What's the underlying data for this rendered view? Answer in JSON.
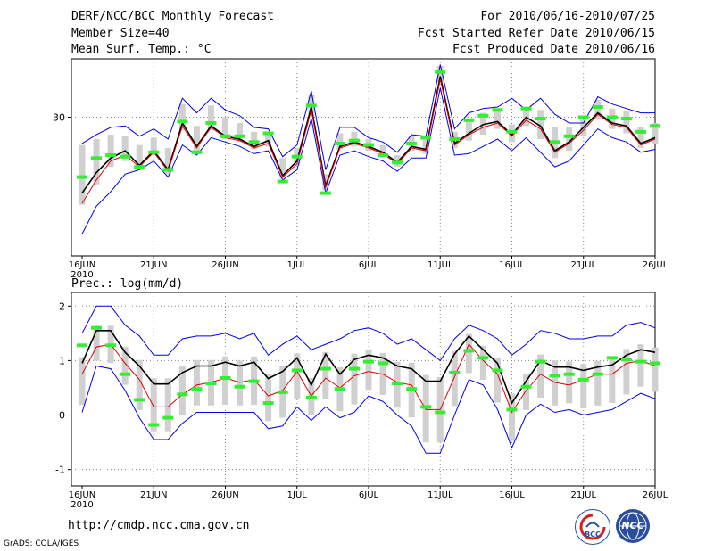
{
  "header": {
    "title": "DERF/NCC/BCC Monthly Forecast",
    "member_size": "Member Size=40",
    "variable": "Mean Surf. Temp.: °C",
    "period": "For 2010/06/16-2010/07/25",
    "refer_date": "Fcst Started Refer Date 2010/06/15",
    "produced_date": "Fcst Produced Date 2010/06/16"
  },
  "footer": {
    "url": "http://cmdp.ncc.cma.gov.cn",
    "grads": "GrADS: COLA/IGES",
    "logo_bcc": "BCC",
    "logo_ncc": "NCC"
  },
  "colors": {
    "envelope": "#0000e6",
    "mean_line": "#000000",
    "median_line": "#e00000",
    "obs_bar": "#33ee33",
    "box": "#d0d0d0",
    "grid": "#888888"
  },
  "chart_data": [
    {
      "type": "line",
      "title": "Mean Surf. Temp.: °C",
      "x_ticks": [
        "16JUN",
        "21JUN",
        "26JUN",
        "1JUL",
        "6JUL",
        "11JUL",
        "16JUL",
        "21JUL",
        "26JUL"
      ],
      "x_year": "2010",
      "y_ticks": [
        30
      ],
      "ylim": [
        20.5,
        34
      ],
      "series": [
        {
          "name": "upper",
          "values": [
            28.2,
            28.8,
            29.3,
            29.4,
            28.7,
            29.2,
            28.5,
            31.3,
            30.3,
            31.3,
            30.5,
            30.1,
            29.3,
            29.2,
            27.3,
            28.1,
            31.8,
            26.4,
            29.3,
            29.3,
            28.6,
            28.3,
            27.6,
            28.8,
            28.7,
            33.6,
            29.2,
            30.3,
            30.6,
            30.7,
            31.3,
            30.5,
            31.3,
            30.2,
            29.6,
            29.6,
            31.4,
            30.9,
            30.6,
            30.3,
            30.3
          ]
        },
        {
          "name": "mean",
          "values": [
            24.8,
            26.2,
            27.2,
            27.7,
            26.7,
            27.7,
            26.4,
            29.6,
            28.0,
            29.4,
            28.7,
            28.5,
            28.0,
            28.4,
            26.0,
            27.0,
            30.7,
            25.3,
            28.0,
            28.3,
            28.0,
            27.6,
            26.9,
            28.0,
            27.8,
            32.8,
            28.2,
            28.9,
            29.5,
            29.7,
            28.8,
            30.0,
            29.4,
            27.7,
            28.3,
            29.3,
            30.3,
            29.6,
            29.4,
            28.2,
            28.6
          ]
        },
        {
          "name": "median",
          "values": [
            24.1,
            25.7,
            27.0,
            27.4,
            26.6,
            27.6,
            26.3,
            29.4,
            27.9,
            29.3,
            28.6,
            28.4,
            27.9,
            28.2,
            25.9,
            26.8,
            30.5,
            25.2,
            27.9,
            28.2,
            27.9,
            27.5,
            26.8,
            27.9,
            27.7,
            32.6,
            28.1,
            28.8,
            29.3,
            29.6,
            28.7,
            29.8,
            29.2,
            27.6,
            28.2,
            29.1,
            30.2,
            29.5,
            29.3,
            28.1,
            28.5
          ]
        },
        {
          "name": "lower",
          "values": [
            22.0,
            23.9,
            24.9,
            26.1,
            26.4,
            27.0,
            25.9,
            28.1,
            27.4,
            28.6,
            28.3,
            28.0,
            27.5,
            27.7,
            25.7,
            26.4,
            29.9,
            24.8,
            27.4,
            27.7,
            27.3,
            27.0,
            26.3,
            27.2,
            27.2,
            32.0,
            27.4,
            27.5,
            28.0,
            28.5,
            27.7,
            28.6,
            27.6,
            26.6,
            27.0,
            28.1,
            29.2,
            28.6,
            28.3,
            27.6,
            27.8
          ]
        }
      ],
      "observed": [
        25.9,
        27.2,
        27.4,
        27.3,
        26.6,
        27.6,
        26.4,
        29.7,
        27.6,
        29.6,
        28.7,
        28.7,
        28.3,
        28.9,
        25.6,
        27.3,
        30.8,
        24.8,
        28.2,
        28.4,
        28.1,
        27.4,
        26.9,
        28.2,
        28.6,
        33.1,
        28.5,
        29.8,
        30.1,
        30.5,
        29.0,
        30.6,
        29.9,
        28.3,
        28.7,
        30.0,
        30.7,
        30.0,
        29.9,
        29.0,
        29.4
      ],
      "box_low": [
        24.0,
        25.4,
        26.6,
        27.0,
        26.4,
        27.4,
        26.1,
        29.1,
        27.7,
        29.1,
        28.5,
        28.3,
        27.8,
        28.0,
        25.8,
        26.7,
        30.1,
        25.0,
        27.8,
        28.0,
        27.7,
        27.3,
        26.6,
        27.7,
        27.5,
        32.4,
        27.9,
        28.4,
        28.8,
        29.2,
        28.3,
        29.4,
        28.5,
        27.2,
        27.7,
        28.7,
        29.9,
        29.2,
        28.9,
        27.9,
        28.2
      ],
      "box_high": [
        28.1,
        28.5,
        28.8,
        28.7,
        28.1,
        28.6,
        27.9,
        30.9,
        29.4,
        30.8,
        30.0,
        29.6,
        29.0,
        29.0,
        27.2,
        27.9,
        31.5,
        26.1,
        28.9,
        29.0,
        28.5,
        28.1,
        27.4,
        28.7,
        28.5,
        33.5,
        29.0,
        29.9,
        30.3,
        30.5,
        29.5,
        30.6,
        30.5,
        29.3,
        29.3,
        29.8,
        31.2,
        30.6,
        30.4,
        29.3,
        29.6
      ]
    },
    {
      "type": "line",
      "title": "Prec.: log(mm/d)",
      "x_ticks": [
        "16JUN",
        "21JUN",
        "26JUN",
        "1JUL",
        "6JUL",
        "11JUL",
        "16JUL",
        "21JUL",
        "26JUL"
      ],
      "x_year": "2010",
      "y_ticks": [
        2,
        1,
        0,
        -1
      ],
      "ylim": [
        -1.3,
        2.25
      ],
      "series": [
        {
          "name": "upper",
          "values": [
            1.5,
            2.0,
            2.0,
            1.65,
            1.45,
            1.1,
            1.1,
            1.4,
            1.45,
            1.45,
            1.5,
            1.4,
            1.5,
            1.1,
            1.3,
            1.45,
            1.2,
            1.3,
            1.4,
            1.55,
            1.6,
            1.5,
            1.3,
            1.4,
            1.2,
            1.0,
            1.4,
            1.65,
            1.55,
            1.4,
            1.1,
            1.3,
            1.55,
            1.5,
            1.4,
            1.4,
            1.45,
            1.45,
            1.65,
            1.7,
            1.6
          ]
        },
        {
          "name": "mean",
          "values": [
            0.95,
            1.55,
            1.55,
            1.15,
            0.9,
            0.57,
            0.57,
            0.78,
            0.9,
            0.9,
            0.97,
            0.9,
            0.97,
            0.67,
            0.8,
            1.05,
            0.55,
            1.12,
            0.75,
            1.02,
            1.1,
            1.05,
            0.9,
            0.85,
            0.62,
            0.62,
            1.12,
            1.45,
            1.2,
            0.95,
            0.22,
            0.62,
            1.0,
            0.88,
            0.88,
            0.82,
            0.88,
            0.92,
            1.1,
            1.2,
            1.15
          ]
        },
        {
          "name": "median",
          "values": [
            0.75,
            1.25,
            1.3,
            0.95,
            0.65,
            0.15,
            0.15,
            0.38,
            0.55,
            0.6,
            0.68,
            0.6,
            0.65,
            0.35,
            0.45,
            0.8,
            0.35,
            0.68,
            0.5,
            0.72,
            0.8,
            0.75,
            0.6,
            0.55,
            0.1,
            0.1,
            0.7,
            1.3,
            1.0,
            0.75,
            0.05,
            0.45,
            0.75,
            0.6,
            0.55,
            0.65,
            0.75,
            0.75,
            0.95,
            1.0,
            0.9
          ]
        },
        {
          "name": "lower",
          "values": [
            0.05,
            0.9,
            0.85,
            0.45,
            -0.05,
            -0.45,
            -0.45,
            -0.15,
            0.05,
            0.05,
            0.05,
            0.05,
            0.05,
            -0.25,
            -0.2,
            0.15,
            -0.1,
            0.15,
            -0.05,
            0.05,
            0.35,
            0.25,
            0.0,
            -0.2,
            -0.7,
            -0.7,
            0.0,
            0.65,
            0.55,
            0.1,
            -0.6,
            0.0,
            0.2,
            0.05,
            0.1,
            0.0,
            0.05,
            0.1,
            0.25,
            0.4,
            0.3
          ]
        }
      ],
      "observed": [
        1.28,
        1.6,
        1.28,
        0.75,
        0.28,
        -0.18,
        -0.05,
        0.38,
        0.48,
        0.58,
        0.68,
        0.52,
        0.62,
        0.22,
        0.42,
        0.82,
        0.32,
        0.85,
        0.48,
        0.85,
        0.98,
        0.95,
        0.58,
        0.48,
        0.15,
        0.05,
        0.78,
        1.18,
        1.05,
        0.82,
        0.1,
        0.52,
        0.98,
        0.72,
        0.75,
        0.65,
        0.75,
        1.05,
        1.02,
        0.98,
        0.95
      ]
    }
  ]
}
